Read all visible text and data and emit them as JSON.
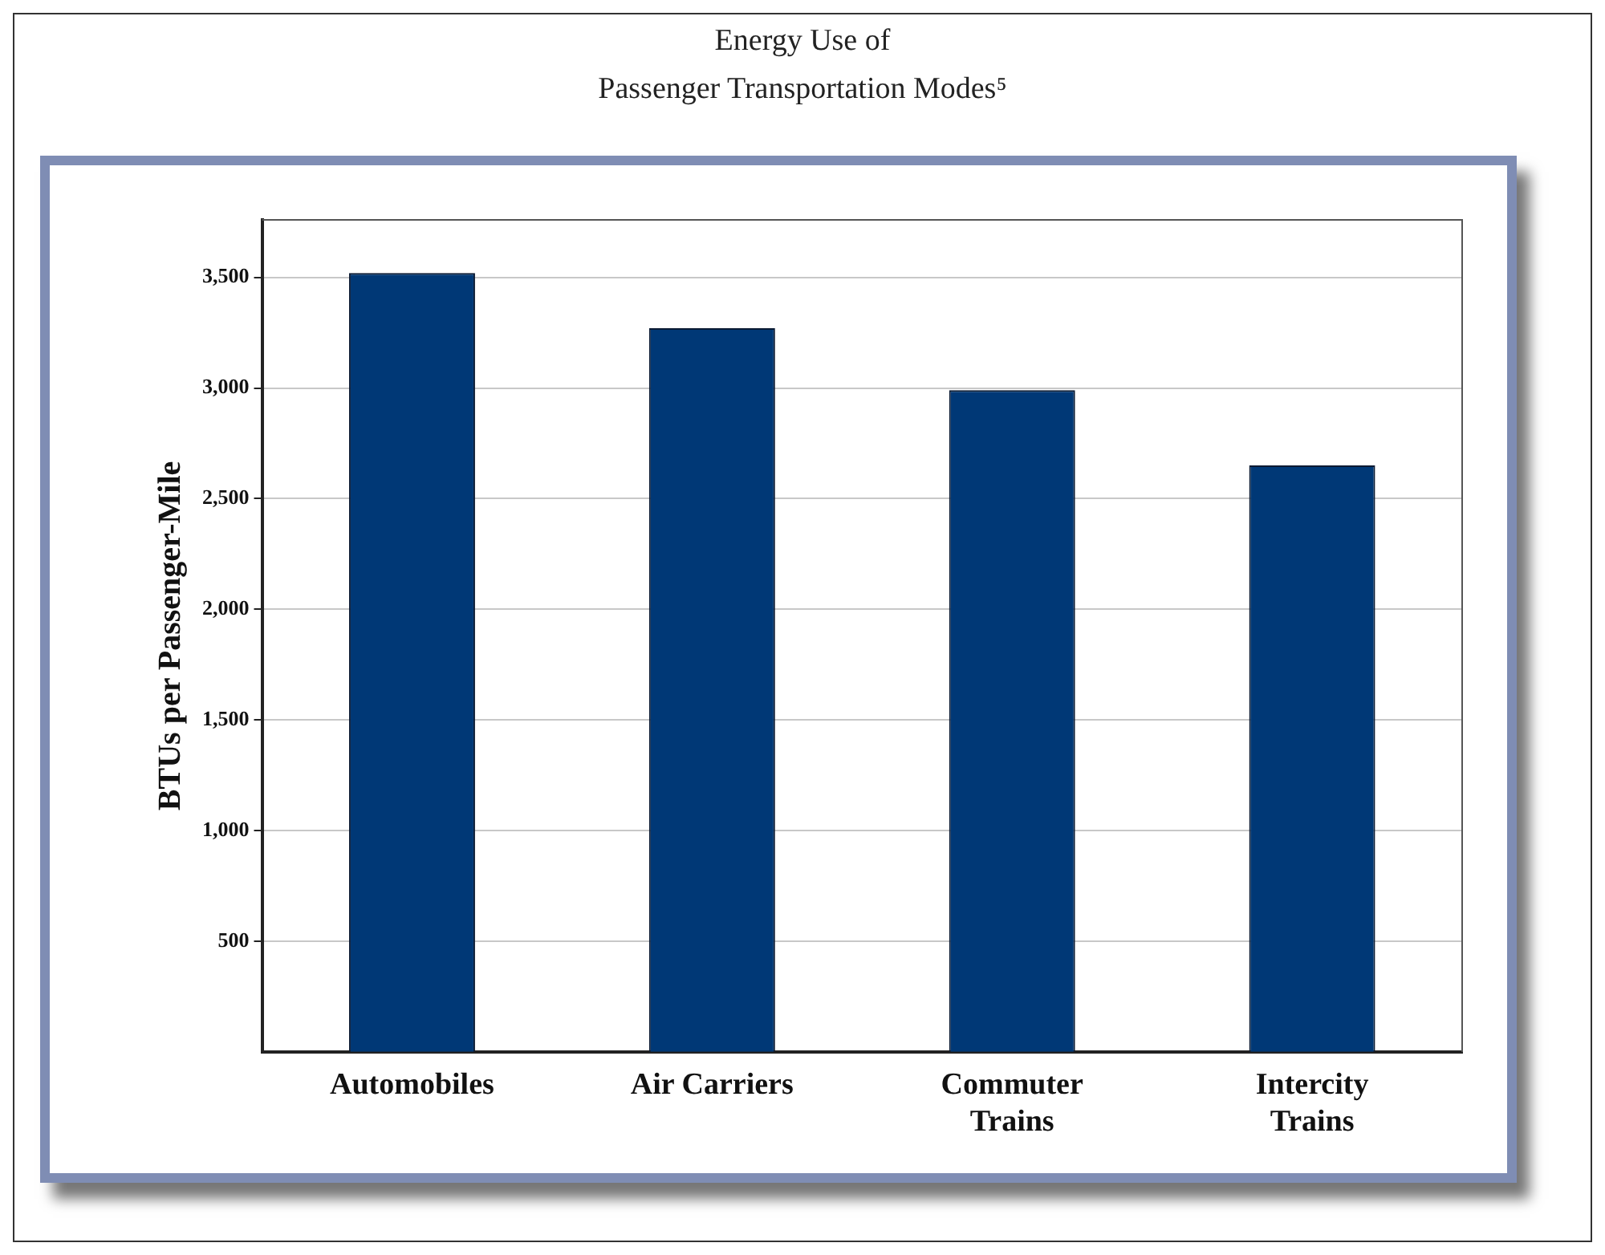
{
  "chart_data": {
    "type": "bar",
    "title": "Energy Use of\nPassenger Transportation Modes⁵",
    "ylabel": "BTUs per Passenger-Mile",
    "categories": [
      "Automobiles",
      "Air Carriers",
      "Commuter Trains",
      "Intercity Trains"
    ],
    "values": [
      3520,
      3270,
      2990,
      2650
    ],
    "color": "#003876",
    "ylim": [
      0,
      3760
    ],
    "yticks": [
      500,
      {
        "value": 1000,
        "label": "1,000"
      },
      {
        "value": 1500,
        "label": "1,500"
      },
      {
        "value": 2000,
        "label": "2,000"
      },
      {
        "value": 2500,
        "label": "2,500"
      },
      {
        "value": 3000,
        "label": "3,000"
      },
      {
        "value": 3500,
        "label": "3,500"
      }
    ],
    "grid": "y",
    "legend": false
  }
}
